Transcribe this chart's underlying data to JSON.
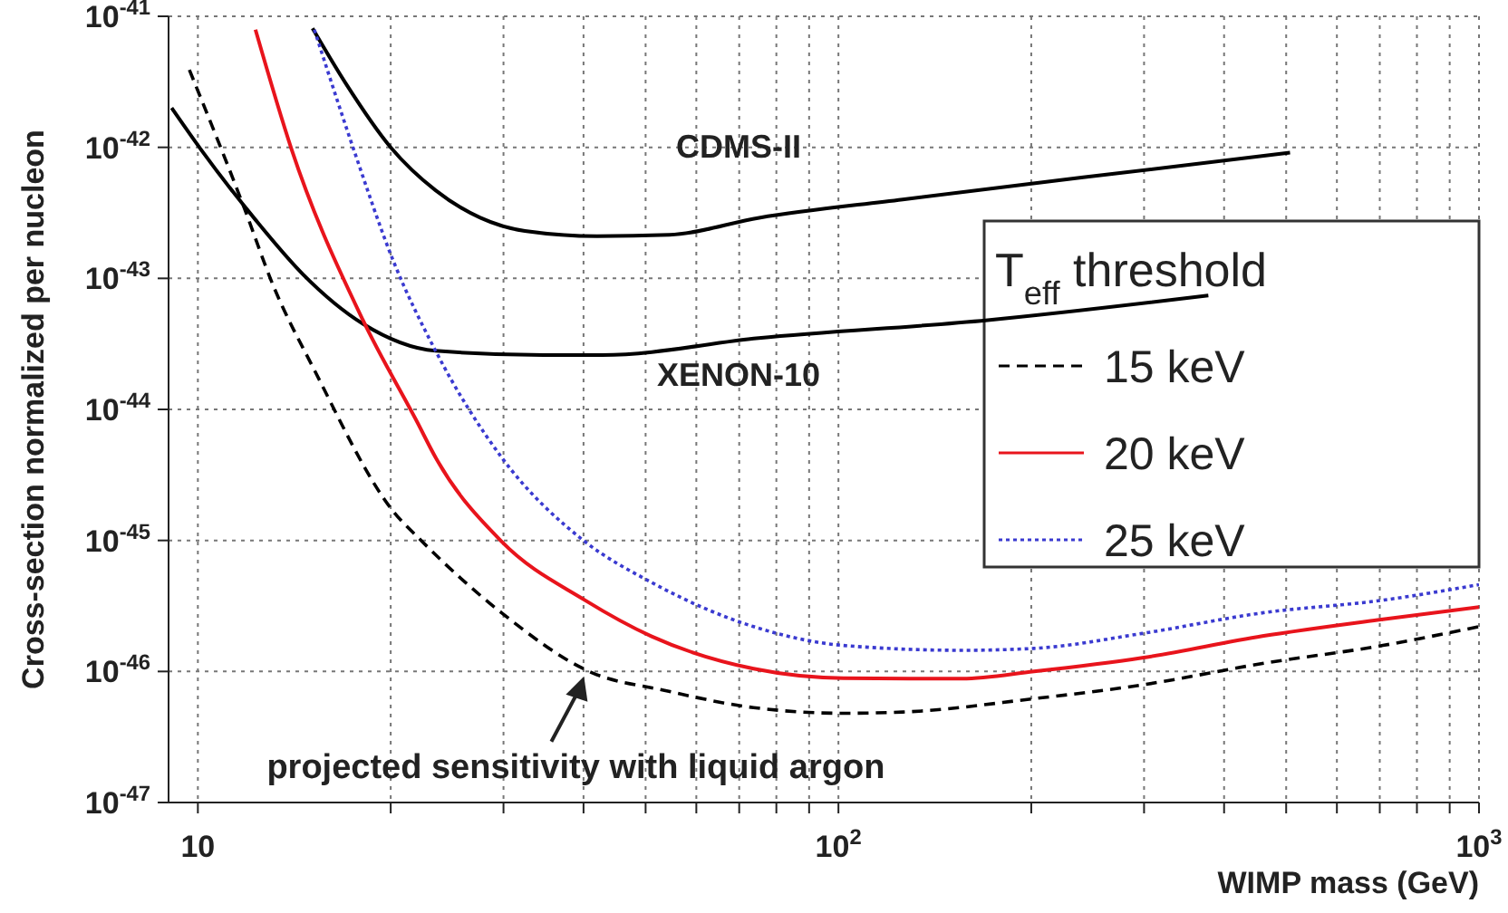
{
  "chart_data": {
    "type": "line",
    "xlabel": "WIMP mass (GeV)",
    "ylabel": "Cross-section normalized per nucleon",
    "legend_title": "T$_{eff}$ threshold",
    "log": "xy",
    "grid": true,
    "legend": "right",
    "marker": "none",
    "xlim": [
      9,
      1000
    ],
    "xticks": [
      {
        "value": 10,
        "label": "10"
      },
      {
        "value": 20,
        "label": null
      },
      {
        "value": 30,
        "label": null
      },
      {
        "value": 40,
        "label": null
      },
      {
        "value": 50,
        "label": null
      },
      {
        "value": 60,
        "label": null
      },
      {
        "value": 70,
        "label": null
      },
      {
        "value": 80,
        "label": null
      },
      {
        "value": 90,
        "label": null
      },
      {
        "value": 100,
        "label": "10$^{2}$"
      },
      {
        "value": 200,
        "label": null
      },
      {
        "value": 300,
        "label": null
      },
      {
        "value": 400,
        "label": null
      },
      {
        "value": 500,
        "label": null
      },
      {
        "value": 600,
        "label": null
      },
      {
        "value": 700,
        "label": null
      },
      {
        "value": 800,
        "label": null
      },
      {
        "value": 900,
        "label": null
      },
      {
        "value": 1000,
        "label": "10$^{3}$"
      }
    ],
    "ylim": [
      1e-47,
      1e-41
    ],
    "yticks": [
      {
        "value": 1e-47,
        "label": "10$^{-47}$"
      },
      {
        "value": 1e-46,
        "label": "10$^{-46}$"
      },
      {
        "value": 1e-45,
        "label": "10$^{-45}$"
      },
      {
        "value": 1e-44,
        "label": "10$^{-44}$"
      },
      {
        "value": 1e-43,
        "label": "10$^{-43}$"
      },
      {
        "value": 1e-42,
        "label": "10$^{-42}$"
      },
      {
        "value": 1e-41,
        "label": "10$^{-41}$"
      }
    ],
    "series": [
      {
        "color": "#000000",
        "line_style": "solid",
        "x": [
          15.1,
          17.0,
          20.0,
          23.5,
          27.6,
          32.4,
          42.0,
          54.5,
          75.2,
          126,
          241,
          507
        ],
        "values": [
          8.1e-42,
          3.1e-42,
          1e-42,
          4.7e-43,
          2.9e-43,
          2.3e-43,
          2.1e-43,
          2.15e-43,
          2.9e-43,
          4e-43,
          5.9e-43,
          9.1e-43
        ]
      },
      {
        "color": "#000000",
        "line_style": "solid",
        "x": [
          9.1,
          10.1,
          12.3,
          14.6,
          18.1,
          23.5,
          34.6,
          42.8,
          75.1,
          171,
          378
        ],
        "values": [
          2e-42,
          9.7e-43,
          2.8e-43,
          1.07e-43,
          4.5e-44,
          2.8e-44,
          2.6e-44,
          2.6e-44,
          3.5e-44,
          4.8e-44,
          7.4e-44
        ]
      },
      {
        "name": "15 keV",
        "color": "#000000",
        "line_style": "dashed",
        "x": [
          9.7,
          11.8,
          13.1,
          15.2,
          20.2,
          22.4,
          29.8,
          41.2,
          53.3,
          73.7,
          101.8,
          126,
          202,
          298,
          459,
          708,
          1000
        ],
        "values": [
          3.9e-42,
          3.5e-43,
          8.9e-44,
          2e-44,
          1.66e-45,
          9.8e-46,
          2.8e-46,
          9.8e-47,
          7.2e-47,
          5.3e-47,
          4.8e-47,
          4.9e-47,
          6.2e-47,
          7.9e-47,
          1.15e-46,
          1.58e-46,
          2.2e-46
        ]
      },
      {
        "name": "20 keV",
        "color": "#e8141c",
        "line_style": "solid",
        "x": [
          12.3,
          14.0,
          18.1,
          22.0,
          23.5,
          29.8,
          40.2,
          51.0,
          73.7,
          101.8,
          156,
          202,
          298,
          459,
          708,
          1000
        ],
        "values": [
          7.9e-42,
          9.7e-43,
          4.8e-44,
          8e-45,
          4.3e-45,
          9.8e-46,
          3.5e-46,
          1.86e-46,
          1.05e-46,
          8.9e-47,
          8.8e-47,
          1e-46,
          1.27e-46,
          1.86e-46,
          2.5e-46,
          3.1e-46
        ]
      },
      {
        "name": "25 keV",
        "color": "#3a3ad0",
        "line_style": "dotted",
        "x": [
          15.2,
          17.5,
          20.2,
          23.5,
          29.8,
          40.2,
          51.0,
          73.7,
          101.8,
          156,
          202,
          298,
          459,
          708,
          1000
        ],
        "values": [
          7.9e-42,
          9.7e-43,
          1.35e-43,
          2.8e-44,
          4.3e-45,
          9.8e-46,
          4.8e-46,
          2.2e-46,
          1.58e-46,
          1.45e-46,
          1.5e-46,
          1.95e-46,
          2.8e-46,
          3.5e-46,
          4.6e-46
        ]
      }
    ],
    "annotations": [
      "CDMS-II",
      "XENON-10",
      "projected sensitivity with liquid argon"
    ]
  }
}
